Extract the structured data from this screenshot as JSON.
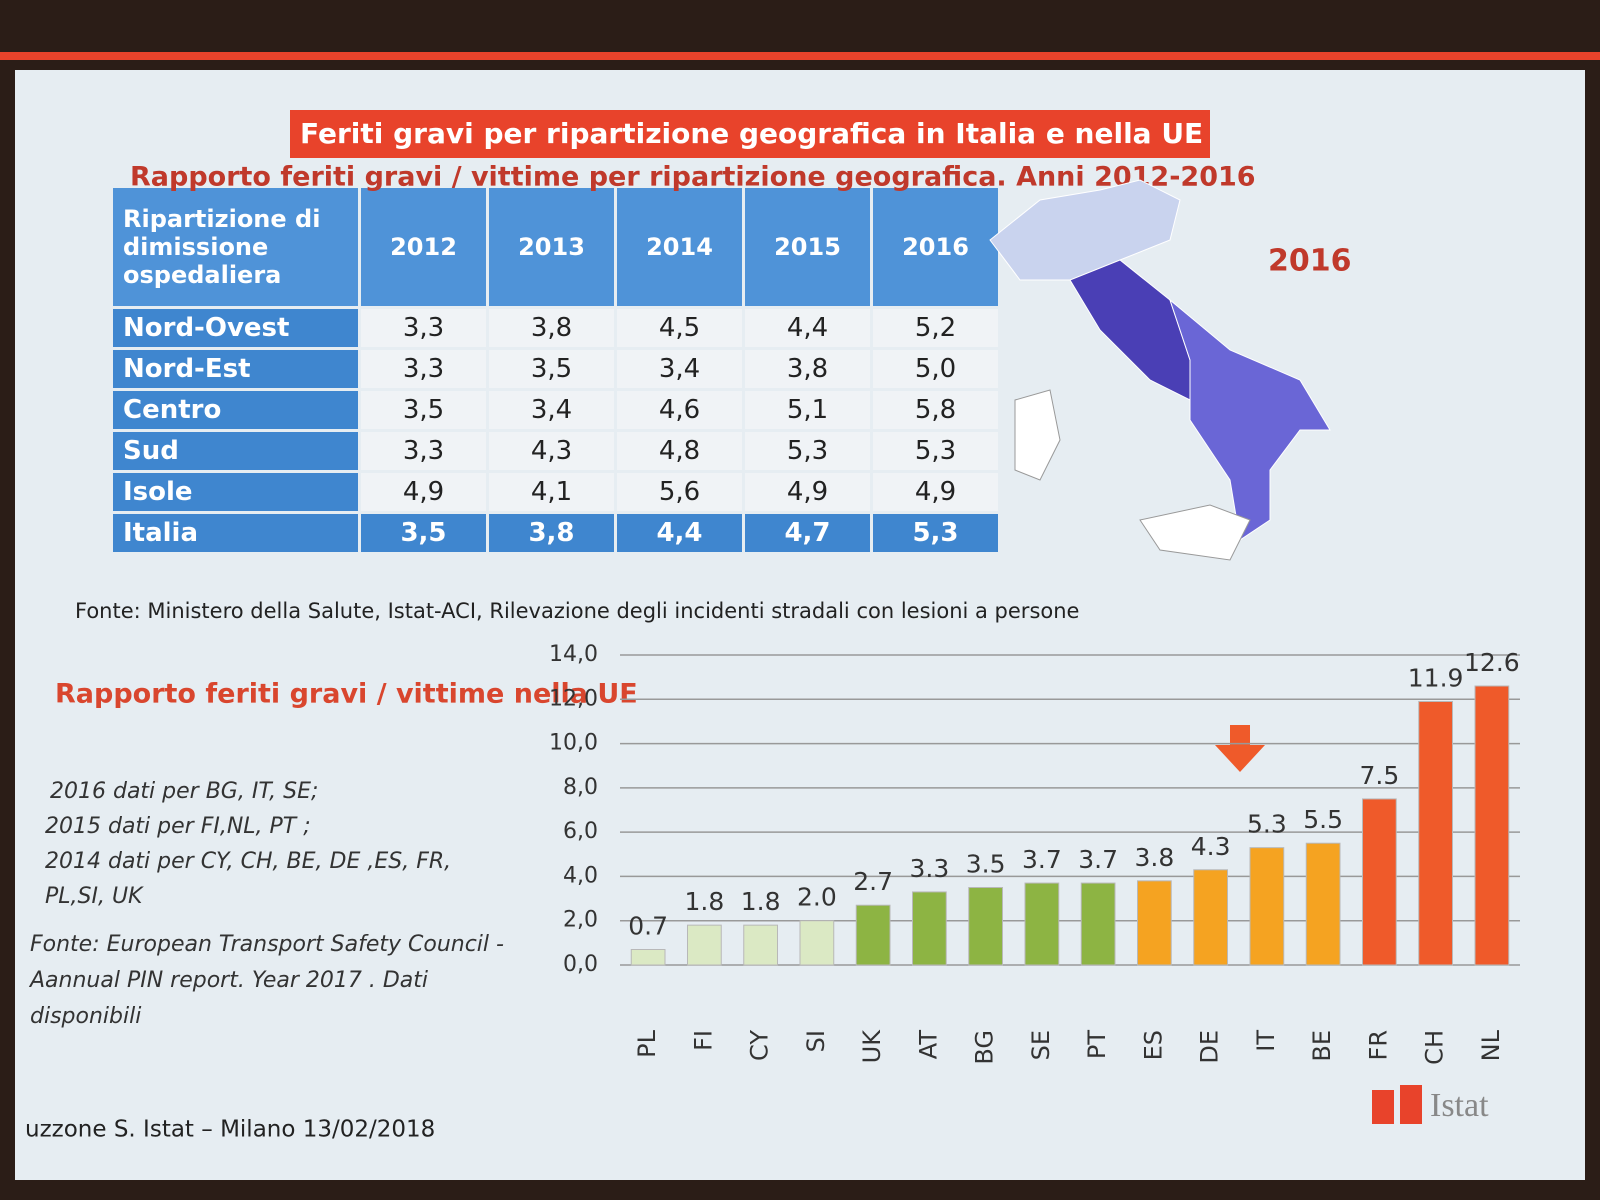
{
  "header": {
    "title": "Feriti gravi per ripartizione geografica in Italia e nella UE",
    "subtitle": "Rapporto feriti gravi / vittime per ripartizione geografica. Anni 2012-2016"
  },
  "table": {
    "columns": [
      "Ripartizione di dimissione ospedaliera",
      "2012",
      "2013",
      "2014",
      "2015",
      "2016"
    ],
    "rows": [
      [
        "Nord-Ovest",
        "3,3",
        "3,8",
        "4,5",
        "4,4",
        "5,2"
      ],
      [
        "Nord-Est",
        "3,3",
        "3,5",
        "3,4",
        "3,8",
        "5,0"
      ],
      [
        "Centro",
        "3,5",
        "3,4",
        "4,6",
        "5,1",
        "5,8"
      ],
      [
        "Sud",
        "3,3",
        "4,3",
        "4,8",
        "5,3",
        "5,3"
      ],
      [
        "Isole",
        "4,9",
        "4,1",
        "5,6",
        "4,9",
        "4,9"
      ],
      [
        "Italia",
        "3,5",
        "3,8",
        "4,4",
        "4,7",
        "5,3"
      ]
    ],
    "source": "Fonte: Ministero della Salute, Istat-ACI, Rilevazione degli incidenti stradali con lesioni a persone"
  },
  "map": {
    "label": "2016"
  },
  "chart_data": {
    "type": "bar",
    "title": "Rapporto feriti gravi / vittime nella UE",
    "notes": [
      "2016 dati per BG, IT, SE;",
      "2015 dati per FI,NL, PT ;",
      "2014 dati per CY, CH, BE, DE ,ES, FR,",
      "PL,SI, UK"
    ],
    "source": [
      "Fonte: European Transport Safety Council -",
      "Aannual PIN report. Year 2017 . Dati",
      "disponibili"
    ],
    "categories": [
      "PL",
      "FI",
      "CY",
      "SI",
      "UK",
      "AT",
      "BG",
      "SE",
      "PT",
      "ES",
      "DE",
      "IT",
      "BE",
      "FR",
      "CH",
      "NL"
    ],
    "values": [
      0.7,
      1.8,
      1.8,
      2.0,
      2.7,
      3.3,
      3.5,
      3.7,
      3.7,
      3.8,
      4.3,
      5.3,
      5.5,
      7.5,
      11.9,
      12.6
    ],
    "value_labels": [
      "0.7",
      "1.8",
      "1.8",
      "2.0",
      "2.7",
      "3.3",
      "3.5",
      "3.7",
      "3.7",
      "3.8",
      "4.3",
      "5.3",
      "5.5",
      "7.5",
      "11.9",
      "12.6"
    ],
    "colors": [
      "#dbe9c4",
      "#dbe9c4",
      "#dbe9c4",
      "#dbe9c4",
      "#8db443",
      "#8db443",
      "#8db443",
      "#8db443",
      "#8db443",
      "#f5a321",
      "#f5a321",
      "#f5a321",
      "#f5a321",
      "#ef5a2a",
      "#ef5a2a",
      "#ef5a2a"
    ],
    "ylim": [
      0,
      14
    ],
    "yticks": [
      {
        "value": 0,
        "label": "0,0"
      },
      {
        "value": 2,
        "label": "2,0"
      },
      {
        "value": 4,
        "label": "4,0"
      },
      {
        "value": 6,
        "label": "6,0"
      },
      {
        "value": 8,
        "label": "8,0"
      },
      {
        "value": 10,
        "label": "10,0"
      },
      {
        "value": 12,
        "label": "12,0"
      },
      {
        "value": 14,
        "label": "14,0"
      }
    ],
    "grid": true
  },
  "footer": {
    "left": "uzzone S. Istat – Milano 13/02/2018",
    "logo": "Istat"
  }
}
